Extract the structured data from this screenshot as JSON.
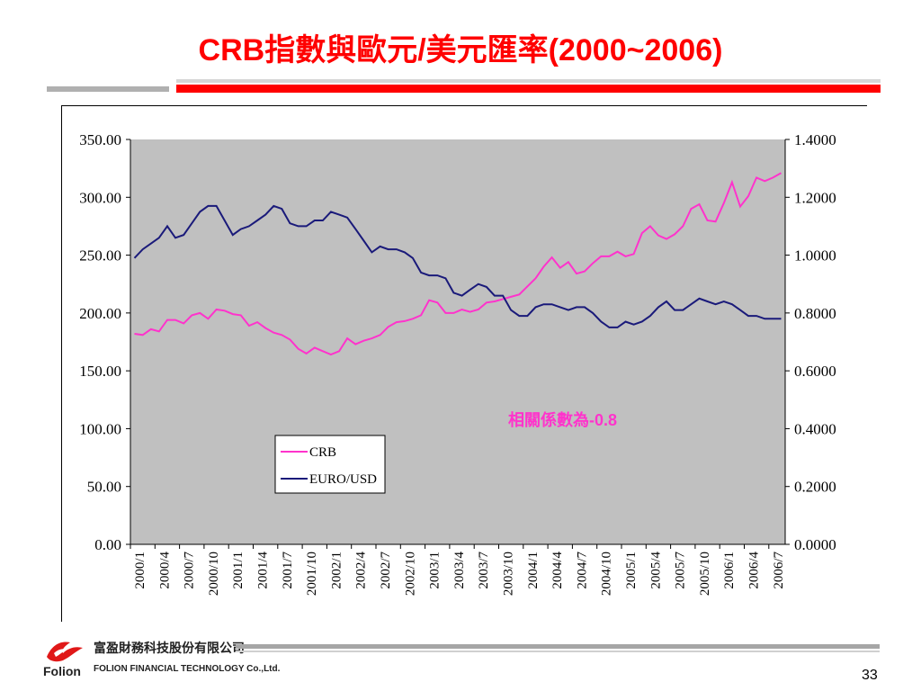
{
  "slide": {
    "title": "CRB指數與歐元/美元匯率(2000~2006)",
    "page_number": "33",
    "company_name_cn": "富盈財務科技股份有限公司",
    "company_name_en": "FOLION FINANCIAL TECHNOLOGY Co.,Ltd.",
    "logo_text": "Folion"
  },
  "colors": {
    "title": "#ff0000",
    "crb": "#ff33cc",
    "euro": "#1a1a7a",
    "plot_bg": "#c0c0c0",
    "annotation": "#ff33cc"
  },
  "chart_data": {
    "type": "line",
    "title": "",
    "annotation": "相關係數為-0.8",
    "legend": {
      "position": "lower-left",
      "entries": [
        "CRB",
        "EURO/USD"
      ]
    },
    "grid": false,
    "left_axis": {
      "range": [
        0,
        350
      ],
      "ticks": [
        "350.00",
        "300.00",
        "250.00",
        "200.00",
        "150.00",
        "100.00",
        "50.00",
        "0.00"
      ]
    },
    "right_axis": {
      "range": [
        0,
        1.4
      ],
      "ticks": [
        "1.4000",
        "1.2000",
        "1.0000",
        "0.8000",
        "0.6000",
        "0.4000",
        "0.2000",
        "0.0000"
      ]
    },
    "x_tick_labels": [
      "2000/1",
      "2000/4",
      "2000/7",
      "2000/10",
      "2001/1",
      "2001/4",
      "2001/7",
      "2001/10",
      "2002/1",
      "2002/4",
      "2002/7",
      "2002/10",
      "2003/1",
      "2003/4",
      "2003/7",
      "2003/10",
      "2004/1",
      "2004/4",
      "2004/7",
      "2004/10",
      "2005/1",
      "2005/4",
      "2005/7",
      "2005/10",
      "2006/1",
      "2006/4",
      "2006/7"
    ],
    "series": [
      {
        "name": "CRB",
        "axis": "left",
        "values": [
          182,
          181,
          186,
          184,
          194,
          194,
          191,
          198,
          200,
          195,
          203,
          202,
          199,
          198,
          189,
          192,
          187,
          183,
          181,
          177,
          169,
          165,
          170,
          167,
          164,
          167,
          178,
          173,
          176,
          178,
          181,
          188,
          192,
          193,
          195,
          198,
          211,
          209,
          200,
          200,
          203,
          201,
          203,
          209,
          210,
          212,
          214,
          216,
          223,
          230,
          240,
          248,
          239,
          244,
          234,
          236,
          243,
          249,
          249,
          253,
          249,
          251,
          269,
          275,
          267,
          264,
          268,
          275,
          290,
          294,
          280,
          279,
          295,
          313,
          292,
          301,
          317,
          314,
          317,
          321
        ]
      },
      {
        "name": "EURO/USD",
        "axis": "right",
        "values": [
          0.99,
          1.02,
          1.04,
          1.06,
          1.1,
          1.06,
          1.07,
          1.11,
          1.15,
          1.17,
          1.17,
          1.12,
          1.07,
          1.09,
          1.1,
          1.12,
          1.14,
          1.17,
          1.16,
          1.11,
          1.1,
          1.1,
          1.12,
          1.12,
          1.15,
          1.14,
          1.13,
          1.09,
          1.05,
          1.01,
          1.03,
          1.02,
          1.02,
          1.01,
          0.99,
          0.94,
          0.93,
          0.93,
          0.92,
          0.87,
          0.86,
          0.88,
          0.9,
          0.89,
          0.86,
          0.86,
          0.81,
          0.79,
          0.79,
          0.82,
          0.83,
          0.83,
          0.82,
          0.81,
          0.82,
          0.82,
          0.8,
          0.77,
          0.75,
          0.75,
          0.77,
          0.76,
          0.77,
          0.79,
          0.82,
          0.84,
          0.81,
          0.81,
          0.83,
          0.85,
          0.84,
          0.83,
          0.84,
          0.83,
          0.81,
          0.79,
          0.79,
          0.78,
          0.78,
          0.78
        ]
      }
    ]
  }
}
